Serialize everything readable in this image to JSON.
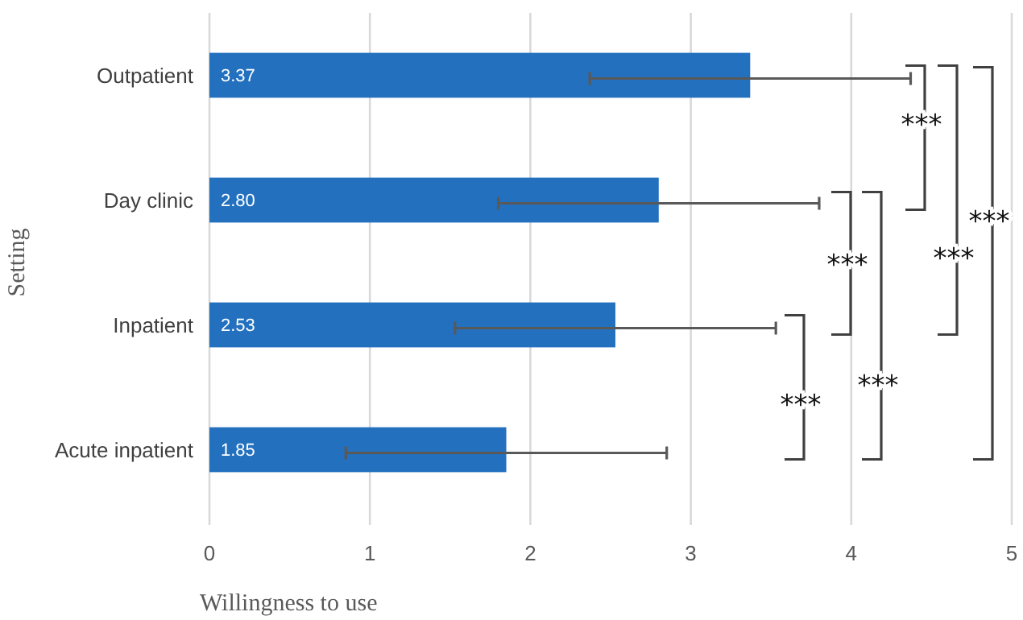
{
  "chart_data": {
    "type": "bar",
    "orientation": "horizontal",
    "xlabel": "Willingness to use",
    "ylabel": "Setting",
    "categories": [
      "Outpatient",
      "Day clinic",
      "Inpatient",
      "Acute inpatient"
    ],
    "values": [
      3.37,
      2.8,
      2.53,
      1.85
    ],
    "value_labels": [
      "3.37",
      "2.80",
      "2.53",
      "1.85"
    ],
    "errors": [
      1.0,
      1.0,
      1.0,
      1.0
    ],
    "color": "#2370be",
    "xlim": [
      0,
      5
    ],
    "xticks": [
      0,
      1,
      2,
      3,
      4,
      5
    ],
    "grid": "x",
    "annotations": [
      "***",
      "***",
      "***",
      "***",
      "***",
      "***"
    ]
  }
}
